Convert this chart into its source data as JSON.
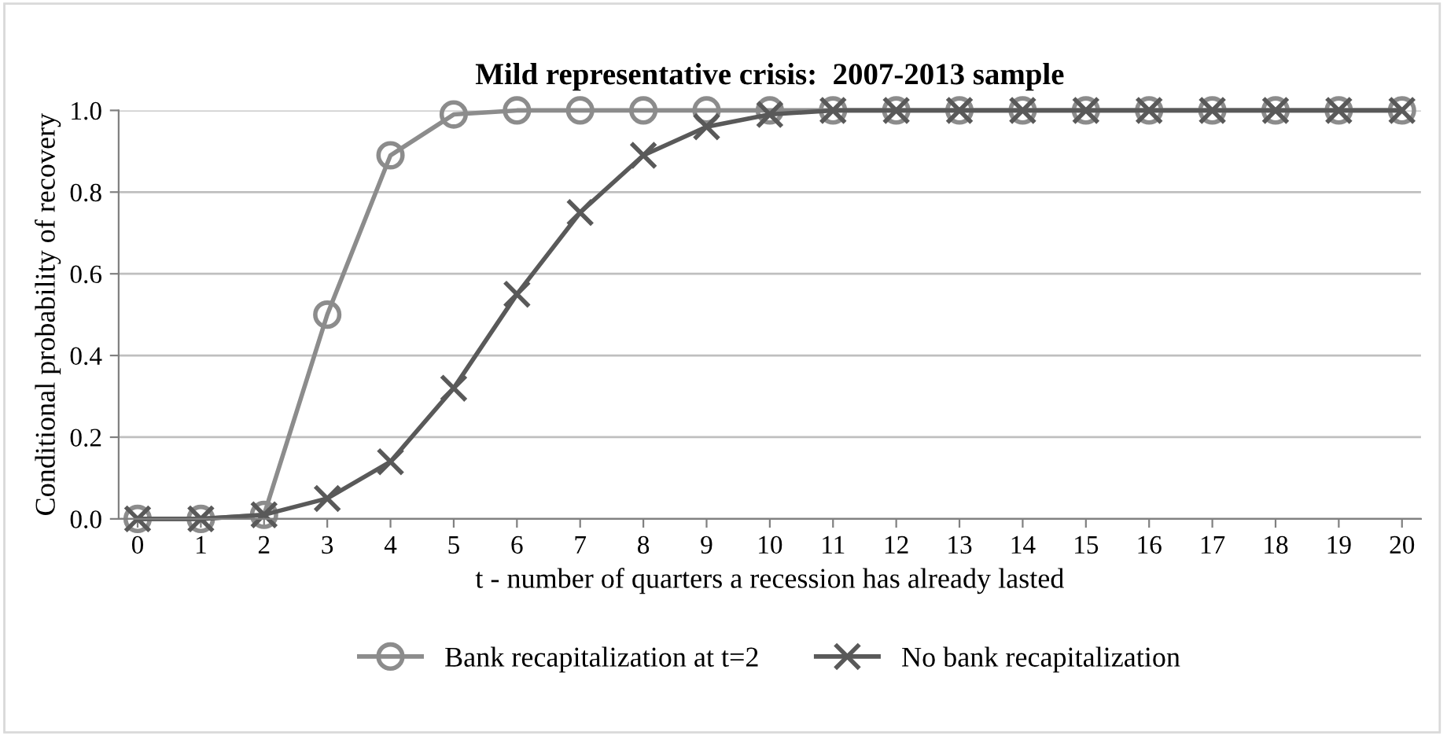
{
  "chart_data": {
    "type": "line",
    "title": "Mild representative crisis:  2007-2013 sample",
    "xlabel": "t - number of quarters a recession has already lasted",
    "ylabel": "Conditional probability of recovery",
    "categories": [
      "0",
      "1",
      "2",
      "3",
      "4",
      "5",
      "6",
      "7",
      "8",
      "9",
      "10",
      "11",
      "12",
      "13",
      "14",
      "15",
      "16",
      "17",
      "18",
      "19",
      "20"
    ],
    "series": [
      {
        "name": "Bank recapitalization at t=2",
        "color": "#8c8c8c",
        "marker": "circle",
        "values": [
          0,
          0,
          0.01,
          0.5,
          0.89,
          0.99,
          1,
          1,
          1,
          1,
          1,
          1,
          1,
          1,
          1,
          1,
          1,
          1,
          1,
          1,
          1
        ]
      },
      {
        "name": "No bank recapitalization",
        "color": "#595959",
        "marker": "cross",
        "values": [
          0,
          0,
          0.01,
          0.05,
          0.14,
          0.32,
          0.55,
          0.75,
          0.89,
          0.96,
          0.99,
          1,
          1,
          1,
          1,
          1,
          1,
          1,
          1,
          1,
          1
        ]
      }
    ],
    "ylim": [
      0,
      1
    ],
    "yticks": [
      {
        "value": 0,
        "label": "0.0"
      },
      {
        "value": 0.2,
        "label": "0.2"
      },
      {
        "value": 0.4,
        "label": "0.4"
      },
      {
        "value": 0.6,
        "label": "0.6"
      },
      {
        "value": 0.8,
        "label": "0.8"
      },
      {
        "value": 1,
        "label": "1.0"
      }
    ],
    "grid": "y",
    "legend": "bottom",
    "line_style": "solid"
  }
}
